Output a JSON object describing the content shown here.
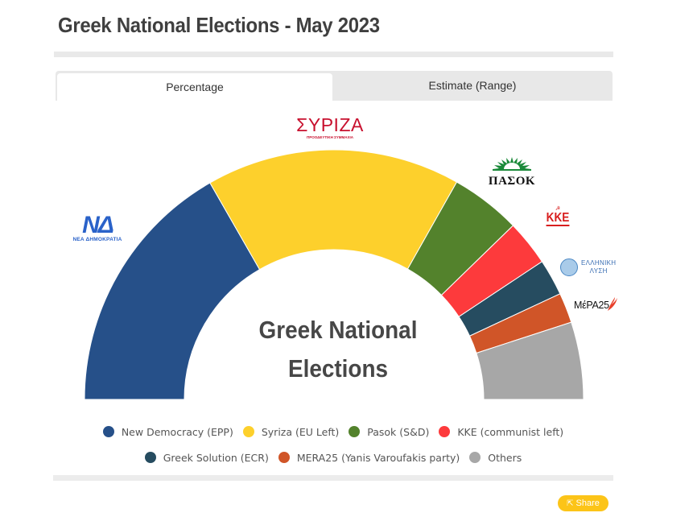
{
  "page": {
    "title": "Greek National Elections - May 2023"
  },
  "tabs": [
    {
      "label": "Percentage",
      "active": true
    },
    {
      "label": "Estimate (Range)",
      "active": false
    }
  ],
  "center_label": {
    "line1": "Greek National",
    "line2": "Elections"
  },
  "logos": {
    "nd": {
      "mark": "ΝΔ",
      "caption": "ΝΕΑ ΔΗΜΟΚΡΑΤΙΑ"
    },
    "syriza": {
      "mark": "ΣΥΡΙΖΑ",
      "caption": "ΠΡΟΟΔΕΥΤΙΚΗ ΣΥΜΜΑΧΙΑ"
    },
    "pasok": {
      "mark": "ΠΑΣΟΚ"
    },
    "kke": {
      "mark": "ΚΚΕ"
    },
    "greek_solution": {
      "line1": "ΕΛΛΗΝΙΚΗ",
      "line2": "ΛΥΣΗ"
    },
    "mera25": {
      "mark": "ΜέΡΑ25"
    }
  },
  "share": {
    "label": "Share",
    "icon": "share-icon"
  },
  "chart_data": {
    "type": "pie",
    "subtype": "half-donut (parliament arc)",
    "title": "Greek National Elections - May 2023",
    "center_label": "Greek National Elections",
    "unit": "%",
    "categories": [
      "New Democracy (EPP)",
      "Syriza (EU Left)",
      "Pasok (S&D)",
      "KKE (communist left)",
      "Greek Solution (ECR)",
      "MERA25 (Yanis Varoufakis party)",
      "Others"
    ],
    "values": [
      33.4,
      32.9,
      9.1,
      5.9,
      4.7,
      3.9,
      10.0
    ],
    "colors": [
      "#265089",
      "#fdd02c",
      "#53822c",
      "#fd3a3c",
      "#264c60",
      "#d05528",
      "#a7a7a7"
    ],
    "legend_position": "bottom",
    "start_angle_deg": 180,
    "end_angle_deg": 0
  },
  "legend": {
    "row1": [
      {
        "label": "New Democracy (EPP)",
        "color": "#265089"
      },
      {
        "label": "Syriza (EU Left)",
        "color": "#fdd02c"
      },
      {
        "label": "Pasok (S&D)",
        "color": "#53822c"
      },
      {
        "label": "KKE (communist left)",
        "color": "#fd3a3c"
      }
    ],
    "row2": [
      {
        "label": "Greek Solution (ECR)",
        "color": "#264c60"
      },
      {
        "label": "MERA25 (Yanis Varoufakis party)",
        "color": "#d05528"
      },
      {
        "label": "Others",
        "color": "#a7a7a7"
      }
    ]
  }
}
